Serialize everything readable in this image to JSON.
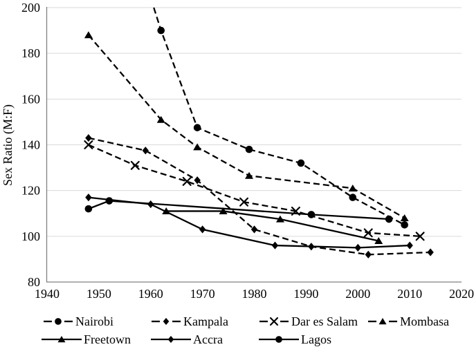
{
  "chart_data": {
    "type": "line",
    "title": "",
    "xlabel": "",
    "ylabel": "Sex Ratio (M:F)",
    "xlim": [
      1940,
      2020
    ],
    "ylim": [
      80,
      200
    ],
    "x_ticks": [
      1940,
      1950,
      1960,
      1970,
      1980,
      1990,
      2000,
      2010,
      2020
    ],
    "y_ticks": [
      80,
      100,
      120,
      140,
      160,
      180,
      200
    ],
    "grid": "horizontal",
    "legend_position": "bottom",
    "ink_color": "#000000",
    "gridline_color": "#d9d9d9",
    "axis_color": "#808080",
    "series": [
      {
        "name": "Nairobi",
        "line": "dashed",
        "marker": "circle",
        "enters_top_at_year": 1960.6,
        "points": [
          [
            1962,
            190
          ],
          [
            1969,
            147.5
          ],
          [
            1979,
            138
          ],
          [
            1989,
            132
          ],
          [
            1999,
            117
          ],
          [
            2009,
            105
          ]
        ]
      },
      {
        "name": "Kampala",
        "line": "dashed",
        "marker": "diamond",
        "points": [
          [
            1948,
            143
          ],
          [
            1959,
            137.5
          ],
          [
            1969,
            124.5
          ],
          [
            1980,
            103
          ],
          [
            1991,
            95.5
          ],
          [
            2002,
            92
          ],
          [
            2014,
            93
          ]
        ]
      },
      {
        "name": "Dar es Salam",
        "line": "dashed",
        "marker": "x",
        "points": [
          [
            1948,
            140
          ],
          [
            1957,
            131
          ],
          [
            1967,
            124
          ],
          [
            1978,
            115
          ],
          [
            1988,
            111
          ],
          [
            2002,
            101.5
          ],
          [
            2012,
            100
          ]
        ]
      },
      {
        "name": "Mombasa",
        "line": "dashed",
        "marker": "triangle",
        "points": [
          [
            1948,
            188
          ],
          [
            1962,
            151
          ],
          [
            1969,
            139
          ],
          [
            1979,
            126.5
          ],
          [
            1999,
            121
          ],
          [
            2009,
            108
          ]
        ]
      },
      {
        "name": "Freetown",
        "line": "solid",
        "marker": "triangle",
        "points": [
          [
            1963,
            111
          ],
          [
            1974,
            111
          ],
          [
            1985,
            107.5
          ],
          [
            2004,
            98
          ]
        ]
      },
      {
        "name": "Accra",
        "line": "solid",
        "marker": "diamond",
        "points": [
          [
            1948,
            117
          ],
          [
            1960,
            114
          ],
          [
            1970,
            103
          ],
          [
            1984,
            96
          ],
          [
            2000,
            95
          ],
          [
            2010,
            96
          ]
        ]
      },
      {
        "name": "Lagos",
        "line": "solid",
        "marker": "circle",
        "points": [
          [
            1948,
            112
          ],
          [
            1952,
            115.5
          ],
          [
            1991,
            109.5
          ],
          [
            2006,
            107.5
          ]
        ]
      }
    ]
  }
}
